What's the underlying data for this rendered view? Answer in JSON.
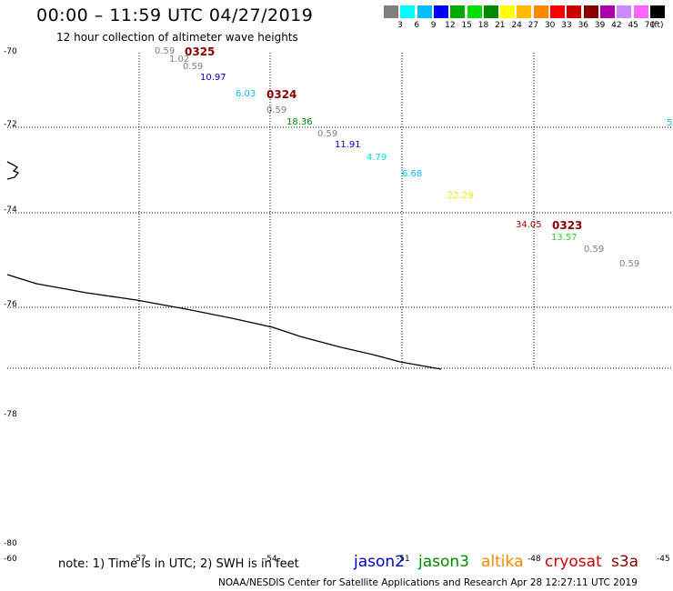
{
  "header": {
    "title": "00:00 – 11:59 UTC 04/27/2019",
    "subtitle": "12 hour collection of altimeter wave heights"
  },
  "legend": {
    "colors": [
      "#808080",
      "#00ffff",
      "#00bfff",
      "#0000ff",
      "#00aa00",
      "#00dd00",
      "#008800",
      "#ffff00",
      "#ffbb00",
      "#ff8800",
      "#ff0000",
      "#cc0000",
      "#880000",
      "#aa00aa",
      "#cc88ff",
      "#ff66ff",
      "#000000"
    ],
    "ticks": [
      "3",
      "6",
      "9",
      "12",
      "15",
      "18",
      "21",
      "24",
      "27",
      "30",
      "33",
      "36",
      "39",
      "42",
      "45",
      "70"
    ],
    "unit": "(ft)"
  },
  "axes": {
    "lat_labels": [
      "-70",
      "-72",
      "-74",
      "-76",
      "-78",
      "-80"
    ],
    "lon_labels": [
      "-60",
      "-57",
      "-54",
      "-51",
      "-48",
      "-45"
    ]
  },
  "passes": [
    "0325",
    "0324",
    "0323"
  ],
  "observations": [
    {
      "text": "0.59",
      "color": "#808080"
    },
    {
      "text": "1.02",
      "color": "#808080"
    },
    {
      "text": "0.59",
      "color": "#808080"
    },
    {
      "text": "10.97",
      "color": "#0000cc"
    },
    {
      "text": "6.03",
      "color": "#00bfff"
    },
    {
      "text": "0.59",
      "color": "#808080"
    },
    {
      "text": "18.36",
      "color": "#008800"
    },
    {
      "text": "0.59",
      "color": "#808080"
    },
    {
      "text": "11.91",
      "color": "#0000cc"
    },
    {
      "text": "4.79",
      "color": "#00dddd"
    },
    {
      "text": "6.68",
      "color": "#00bfff"
    },
    {
      "text": "22.29",
      "color": "#eeee00"
    },
    {
      "text": "34.05",
      "color": "#aa0000"
    },
    {
      "text": "13.57",
      "color": "#33cc33"
    },
    {
      "text": "0.59",
      "color": "#808080"
    },
    {
      "text": "0.59",
      "color": "#808080"
    },
    {
      "text": "5",
      "color": "#00bfff"
    }
  ],
  "note": "note:  1) Time is in UTC;  2) SWH is in feet",
  "satellites": [
    {
      "name": "jason2",
      "color": "#0000cc"
    },
    {
      "name": "jason3",
      "color": "#008800"
    },
    {
      "name": "altika",
      "color": "#ff8800"
    },
    {
      "name": "cryosat",
      "color": "#cc0000"
    },
    {
      "name": "s3a",
      "color": "#8b0000"
    }
  ],
  "footer": "NOAA/NESDIS Center for Satellite Applications and Research     Apr 28 12:27:11 UTC 2019"
}
